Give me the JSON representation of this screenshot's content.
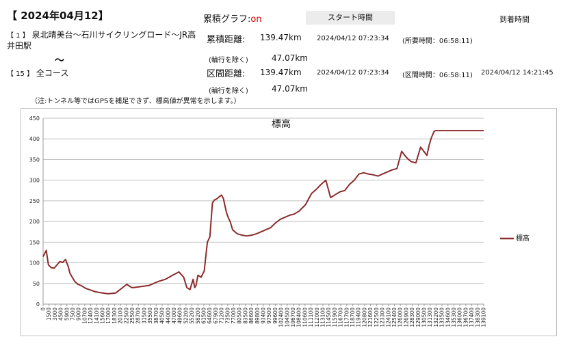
{
  "header": {
    "date_title": "【 2024年04月12】",
    "graph_label": "累積グラフ:",
    "graph_state": "on",
    "start_time_label": "スタート時間",
    "arrival_time_label": "到着時間"
  },
  "route": {
    "from_index": "【 1 】",
    "from_name": "泉北晴美台～石川サイクリングロード～JR高井田駅",
    "tilde": "～",
    "to_index": "【 15 】",
    "to_name": "全コース"
  },
  "cumulative": {
    "label": "累積距離:",
    "distance": "139.47km",
    "exclude_label": "(輪行を除く)",
    "exclude_distance": "47.07km",
    "start_time": "2024/04/12 07:23:34",
    "duration": "(所要時間：06:58:11)"
  },
  "section": {
    "label": "区間距離:",
    "distance": "139.47km",
    "exclude_label": "(輪行を除く)",
    "exclude_distance": "47.07km",
    "start_time": "2024/04/12 07:23:34",
    "duration": "(区間時間：06:58:11)",
    "arrival_time": "2024/04/12 14:21:45"
  },
  "note": "（注:トンネル等ではGPSを補足できず、標高値が異常を示します。）",
  "chart_data": {
    "type": "line",
    "title": "標高",
    "xlabel": "",
    "ylabel": "",
    "ylim": [
      0,
      450
    ],
    "yticks": [
      0,
      50,
      100,
      150,
      200,
      250,
      300,
      350,
      400,
      450
    ],
    "xlim": [
      0,
      139470
    ],
    "xticks": [
      0,
      1500,
      3000,
      4500,
      5900,
      7500,
      9000,
      10700,
      12400,
      14100,
      15600,
      17000,
      18300,
      20100,
      22500,
      25500,
      28700,
      31500,
      35500,
      38700,
      40500,
      44000,
      47000,
      49600,
      52200,
      55200,
      58200,
      61500,
      64600,
      67900,
      71200,
      73500,
      77000,
      80500,
      83500,
      86600,
      89800,
      93400,
      97500,
      99600,
      102400,
      104500,
      106700,
      108400,
      110600,
      111100,
      112000,
      113100,
      114500,
      115900,
      116700,
      117700,
      118700,
      119400,
      120800,
      121600,
      122500,
      123300,
      124100,
      125400,
      126000,
      126900,
      128300,
      129000,
      130500,
      131300,
      132200,
      133500,
      134600,
      135300,
      136000,
      136700,
      137400,
      138300,
      139100
    ],
    "legend": {
      "position": "right",
      "entries": [
        "標高"
      ]
    },
    "grid": true,
    "line_color": "#8b2b2b",
    "series": [
      {
        "name": "標高",
        "x": [
          0,
          1000,
          1700,
          2600,
          3500,
          4400,
          5300,
          6200,
          7100,
          8000,
          8500,
          9000,
          10000,
          11000,
          12000,
          13500,
          15000,
          16500,
          18000,
          20500,
          23000,
          26500,
          28000,
          28800,
          30500,
          33500,
          36500,
          38700,
          41000,
          43000,
          44500,
          45500,
          46500,
          47500,
          48000,
          48400,
          49000,
          50000,
          51000,
          52000,
          52800,
          53600,
          54200,
          55000,
          55800,
          56500,
          57100,
          57500,
          58100,
          58700,
          59200,
          60000,
          61500,
          63000,
          64500,
          66000,
          67500,
          69000,
          70500,
          72000,
          73500,
          75000,
          76500,
          78000,
          79500,
          81000,
          83000,
          85000,
          86500,
          88000,
          89500,
          91000,
          92500,
          94000,
          95500,
          97000,
          98500,
          100000,
          101500,
          103000,
          104500,
          106000,
          107500,
          109000,
          110500,
          112000,
          113500,
          115000,
          116500,
          118000,
          119500,
          120500,
          121500,
          122200,
          122800,
          123300,
          123800,
          124200,
          124800,
          125400,
          126000,
          126600,
          127300,
          128000,
          128700,
          129400,
          130000,
          130800,
          131500,
          132200,
          132900,
          133500,
          134000,
          134600,
          135200,
          135700,
          136300,
          136900,
          137500,
          138000,
          138500,
          139000,
          139470
        ],
        "values": [
          115,
          130,
          95,
          88,
          87,
          95,
          103,
          101,
          108,
          90,
          75,
          68,
          55,
          48,
          45,
          38,
          34,
          30,
          28,
          25,
          27,
          48,
          40,
          40,
          42,
          45,
          55,
          60,
          70,
          78,
          65,
          40,
          35,
          60,
          40,
          45,
          70,
          65,
          80,
          150,
          163,
          245,
          252,
          255,
          260,
          264,
          255,
          240,
          220,
          208,
          200,
          180,
          170,
          167,
          165,
          167,
          170,
          175,
          180,
          185,
          196,
          205,
          210,
          215,
          218,
          225,
          240,
          268,
          278,
          290,
          300,
          258,
          265,
          272,
          275,
          290,
          300,
          315,
          318,
          315,
          313,
          310,
          315,
          320,
          325,
          328,
          370,
          355,
          345,
          342,
          380,
          370,
          360,
          385,
          400,
          410,
          418,
          420,
          420,
          420,
          420,
          420,
          420,
          420,
          420,
          420,
          420,
          420,
          420,
          420,
          420,
          420,
          420,
          420,
          420,
          420,
          420,
          420,
          420,
          420,
          420,
          420,
          420
        ],
        "display_x_scale": 0.154
      }
    ]
  }
}
